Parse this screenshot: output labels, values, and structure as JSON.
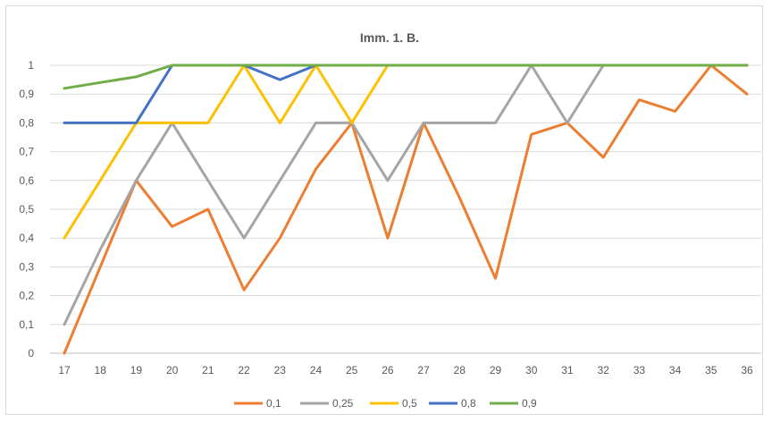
{
  "chart_data": {
    "type": "line",
    "title": "Imm. 1. B.",
    "xlabel": "",
    "ylabel": "",
    "categories": [
      "17",
      "18",
      "19",
      "20",
      "21",
      "22",
      "23",
      "24",
      "25",
      "26",
      "27",
      "28",
      "29",
      "30",
      "31",
      "32",
      "33",
      "34",
      "35",
      "36"
    ],
    "ylim": [
      0,
      1
    ],
    "yticks": [
      "0",
      "0,1",
      "0,2",
      "0,3",
      "0,4",
      "0,5",
      "0,6",
      "0,7",
      "0,8",
      "0,9",
      "1"
    ],
    "grid": true,
    "legend_position": "bottom",
    "series": [
      {
        "name": "0,1",
        "color": "#ED7D31",
        "values": [
          0,
          0.3,
          0.6,
          0.44,
          0.5,
          0.22,
          0.4,
          0.64,
          0.8,
          0.4,
          0.8,
          0.54,
          0.26,
          0.76,
          0.8,
          0.68,
          0.88,
          0.84,
          1,
          0.9
        ]
      },
      {
        "name": "0,25",
        "color": "#A5A5A5",
        "values": [
          0.1,
          0.36,
          0.6,
          0.8,
          0.6,
          0.4,
          0.6,
          0.8,
          0.8,
          0.6,
          0.8,
          0.8,
          0.8,
          1,
          0.8,
          1,
          1,
          1,
          1,
          1
        ]
      },
      {
        "name": "0,5",
        "color": "#FFC000",
        "values": [
          0.4,
          0.6,
          0.8,
          0.8,
          0.8,
          1,
          0.8,
          1,
          0.8,
          1,
          1,
          1,
          1,
          1,
          1,
          1,
          1,
          1,
          1,
          1
        ]
      },
      {
        "name": "0,8",
        "color": "#4472C4",
        "values": [
          0.8,
          0.8,
          0.8,
          1,
          1,
          1,
          0.95,
          1,
          1,
          1,
          1,
          1,
          1,
          1,
          1,
          1,
          1,
          1,
          1,
          1
        ]
      },
      {
        "name": "0,9",
        "color": "#70AD47",
        "values": [
          0.92,
          0.94,
          0.96,
          1,
          1,
          1,
          1,
          1,
          1,
          1,
          1,
          1,
          1,
          1,
          1,
          1,
          1,
          1,
          1,
          1
        ]
      }
    ]
  }
}
